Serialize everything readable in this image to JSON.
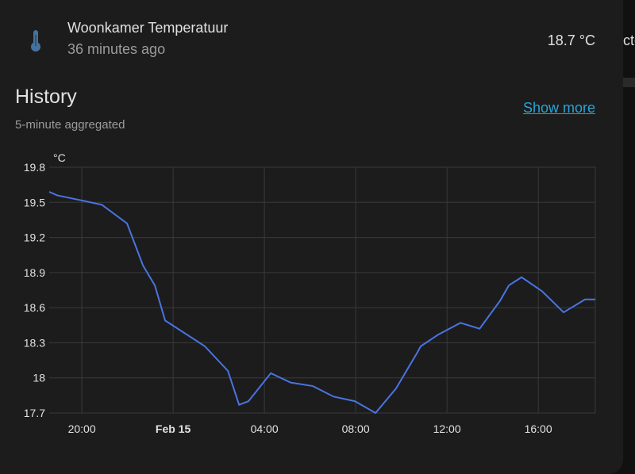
{
  "header": {
    "entity_name": "Woonkamer Temperatuur",
    "last_changed": "36 minutes ago",
    "state": "18.7 °C",
    "side_text": "cte"
  },
  "history": {
    "title": "History",
    "subtitle": "5-minute aggregated",
    "show_more": "Show more"
  },
  "chart_data": {
    "type": "line",
    "y_unit": "°C",
    "x": [
      -5.43,
      -5.08,
      -4.1,
      -3.13,
      -2.02,
      -1.32,
      -0.8,
      -0.35,
      1.39,
      2.4,
      2.89,
      3.3,
      4.28,
      5.15,
      6.12,
      7.03,
      7.97,
      8.87,
      9.77,
      10.71,
      10.85,
      11.62,
      12.59,
      13.43,
      14.33,
      14.71,
      15.27,
      16.17,
      17.11,
      18.05,
      18.5
    ],
    "series": [
      {
        "name": "Woonkamer Temperatuur",
        "color": "#4a74e0",
        "values": [
          19.59,
          19.56,
          19.52,
          19.48,
          19.32,
          18.96,
          18.79,
          18.49,
          18.27,
          18.06,
          17.77,
          17.8,
          18.04,
          17.96,
          17.93,
          17.84,
          17.8,
          17.7,
          17.91,
          18.22,
          18.27,
          18.37,
          18.47,
          18.42,
          18.66,
          18.79,
          18.86,
          18.74,
          18.56,
          18.67,
          18.67
        ]
      }
    ],
    "xlim": [
      -5.43,
      18.5
    ],
    "xticks": [
      {
        "value": -4,
        "label": "20:00"
      },
      {
        "value": 0,
        "label": "Feb 15"
      },
      {
        "value": 4,
        "label": "04:00"
      },
      {
        "value": 8,
        "label": "08:00"
      },
      {
        "value": 12,
        "label": "12:00"
      },
      {
        "value": 16,
        "label": "16:00"
      }
    ],
    "ylim": [
      17.7,
      19.8
    ],
    "yticks": [
      {
        "value": 19.8,
        "label": "19.8"
      },
      {
        "value": 19.5,
        "label": "19.5"
      },
      {
        "value": 19.2,
        "label": "19.2"
      },
      {
        "value": 18.9,
        "label": "18.9"
      },
      {
        "value": 18.6,
        "label": "18.6"
      },
      {
        "value": 18.3,
        "label": "18.3"
      },
      18,
      {
        "value": 17.7,
        "label": "17.7"
      }
    ],
    "grid": true
  }
}
